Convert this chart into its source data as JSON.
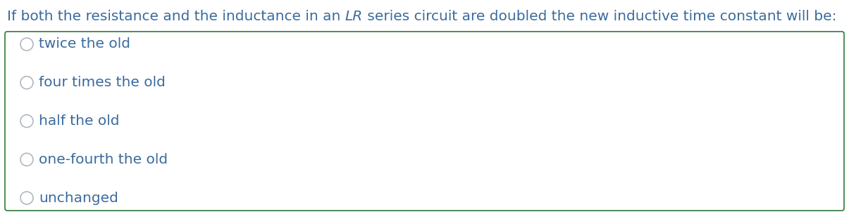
{
  "title_prefix": "If both the resistance and the inductance in an ",
  "title_italic": "LR",
  "title_suffix": " series circuit are doubled the new inductive time constant will be:",
  "options": [
    "twice the old",
    "four times the old",
    "half the old",
    "one-fourth the old",
    "unchanged"
  ],
  "bg_color": "#ffffff",
  "text_color": "#3a6b9e",
  "title_color": "#3a6b9e",
  "box_border_color": "#2d7a3a",
  "circle_edge_color": "#b0b8c0",
  "circle_face_color": "#ffffff",
  "font_size_title": 14.5,
  "font_size_options": 14.5,
  "fig_width": 12.05,
  "fig_height": 3.02,
  "dpi": 100
}
